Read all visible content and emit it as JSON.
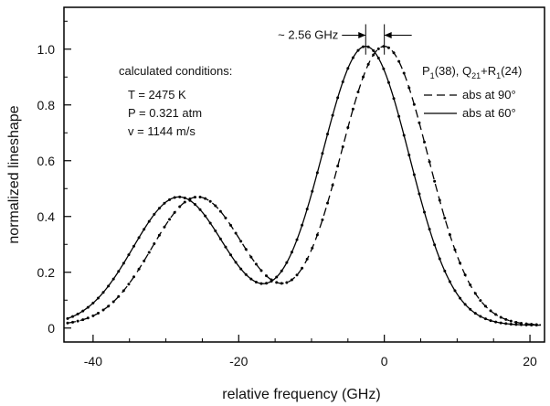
{
  "chart_data": {
    "type": "line",
    "xlabel": "relative frequency (GHz)",
    "ylabel": "normalized lineshape",
    "xlim": [
      -44,
      22
    ],
    "ylim": [
      -0.05,
      1.15
    ],
    "x_ticks": [
      -40,
      -20,
      0,
      20
    ],
    "x_tick_labels": [
      "-40",
      "-20",
      "0",
      "20"
    ],
    "y_ticks": [
      0,
      0.2,
      0.4,
      0.6,
      0.8,
      1.0
    ],
    "y_tick_labels": [
      "0",
      "0.2",
      "0.4",
      "0.6",
      "0.8",
      "1.0"
    ],
    "grid": false,
    "legend_position": "top-right",
    "legend_title": {
      "main": "P",
      "sub1": "1",
      "mid1": "(38), Q",
      "sub2": "21",
      "mid2": "+R",
      "sub3": "1",
      "end": "(24)"
    },
    "series": [
      {
        "name": "abs at 90°",
        "style": "dashed",
        "color": "#000000",
        "peaks": [
          {
            "center": 0,
            "height": 1.0,
            "width": 6.0
          },
          {
            "center": -25.6,
            "height": 0.46,
            "width": 6.3
          }
        ],
        "baseline": 0.01
      },
      {
        "name": "abs at 60°",
        "style": "solid",
        "color": "#000000",
        "peaks": [
          {
            "center": -2.56,
            "height": 1.0,
            "width": 6.0
          },
          {
            "center": -28.2,
            "height": 0.46,
            "width": 6.3
          }
        ],
        "baseline": 0.01
      }
    ],
    "shift_annotation": {
      "label": "~ 2.56 GHz",
      "x_from": -2.56,
      "x_to": 0,
      "y": 1.05
    },
    "conditions": {
      "heading": "calculated conditions:",
      "lines": [
        "T = 2475 K",
        "P = 0.321 atm",
        "v = 1144 m/s"
      ]
    }
  }
}
